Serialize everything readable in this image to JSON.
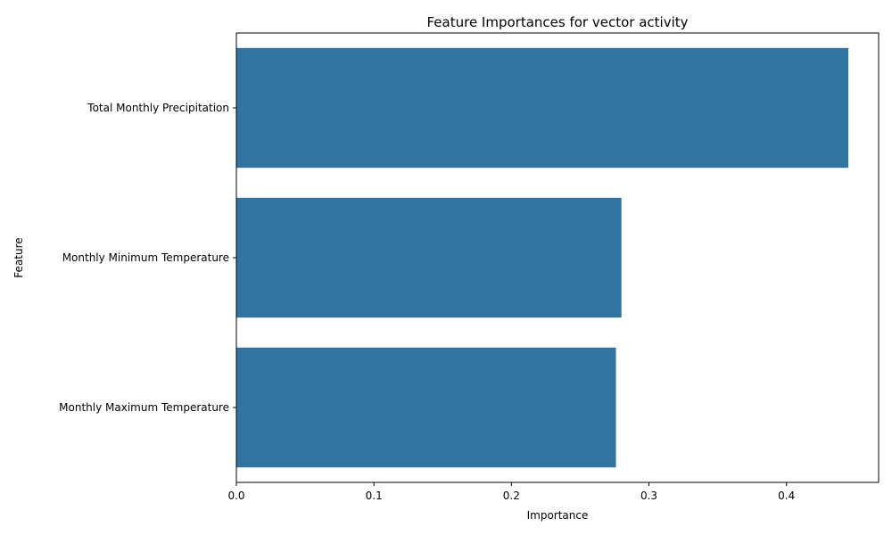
{
  "chart_data": {
    "type": "bar",
    "orientation": "horizontal",
    "title": "Feature Importances for vector activity",
    "xlabel": "Importance",
    "ylabel": "Feature",
    "categories": [
      "Total Monthly Precipitation",
      "Monthly Minimum Temperature",
      "Monthly Maximum Temperature"
    ],
    "values": [
      0.445,
      0.28,
      0.276
    ],
    "xlim": [
      0,
      0.467
    ],
    "xticks": [
      0.0,
      0.1,
      0.2,
      0.3,
      0.4
    ],
    "xtick_labels": [
      "0.0",
      "0.1",
      "0.2",
      "0.3",
      "0.4"
    ],
    "grid": false,
    "bar_color": "#3274a1"
  }
}
